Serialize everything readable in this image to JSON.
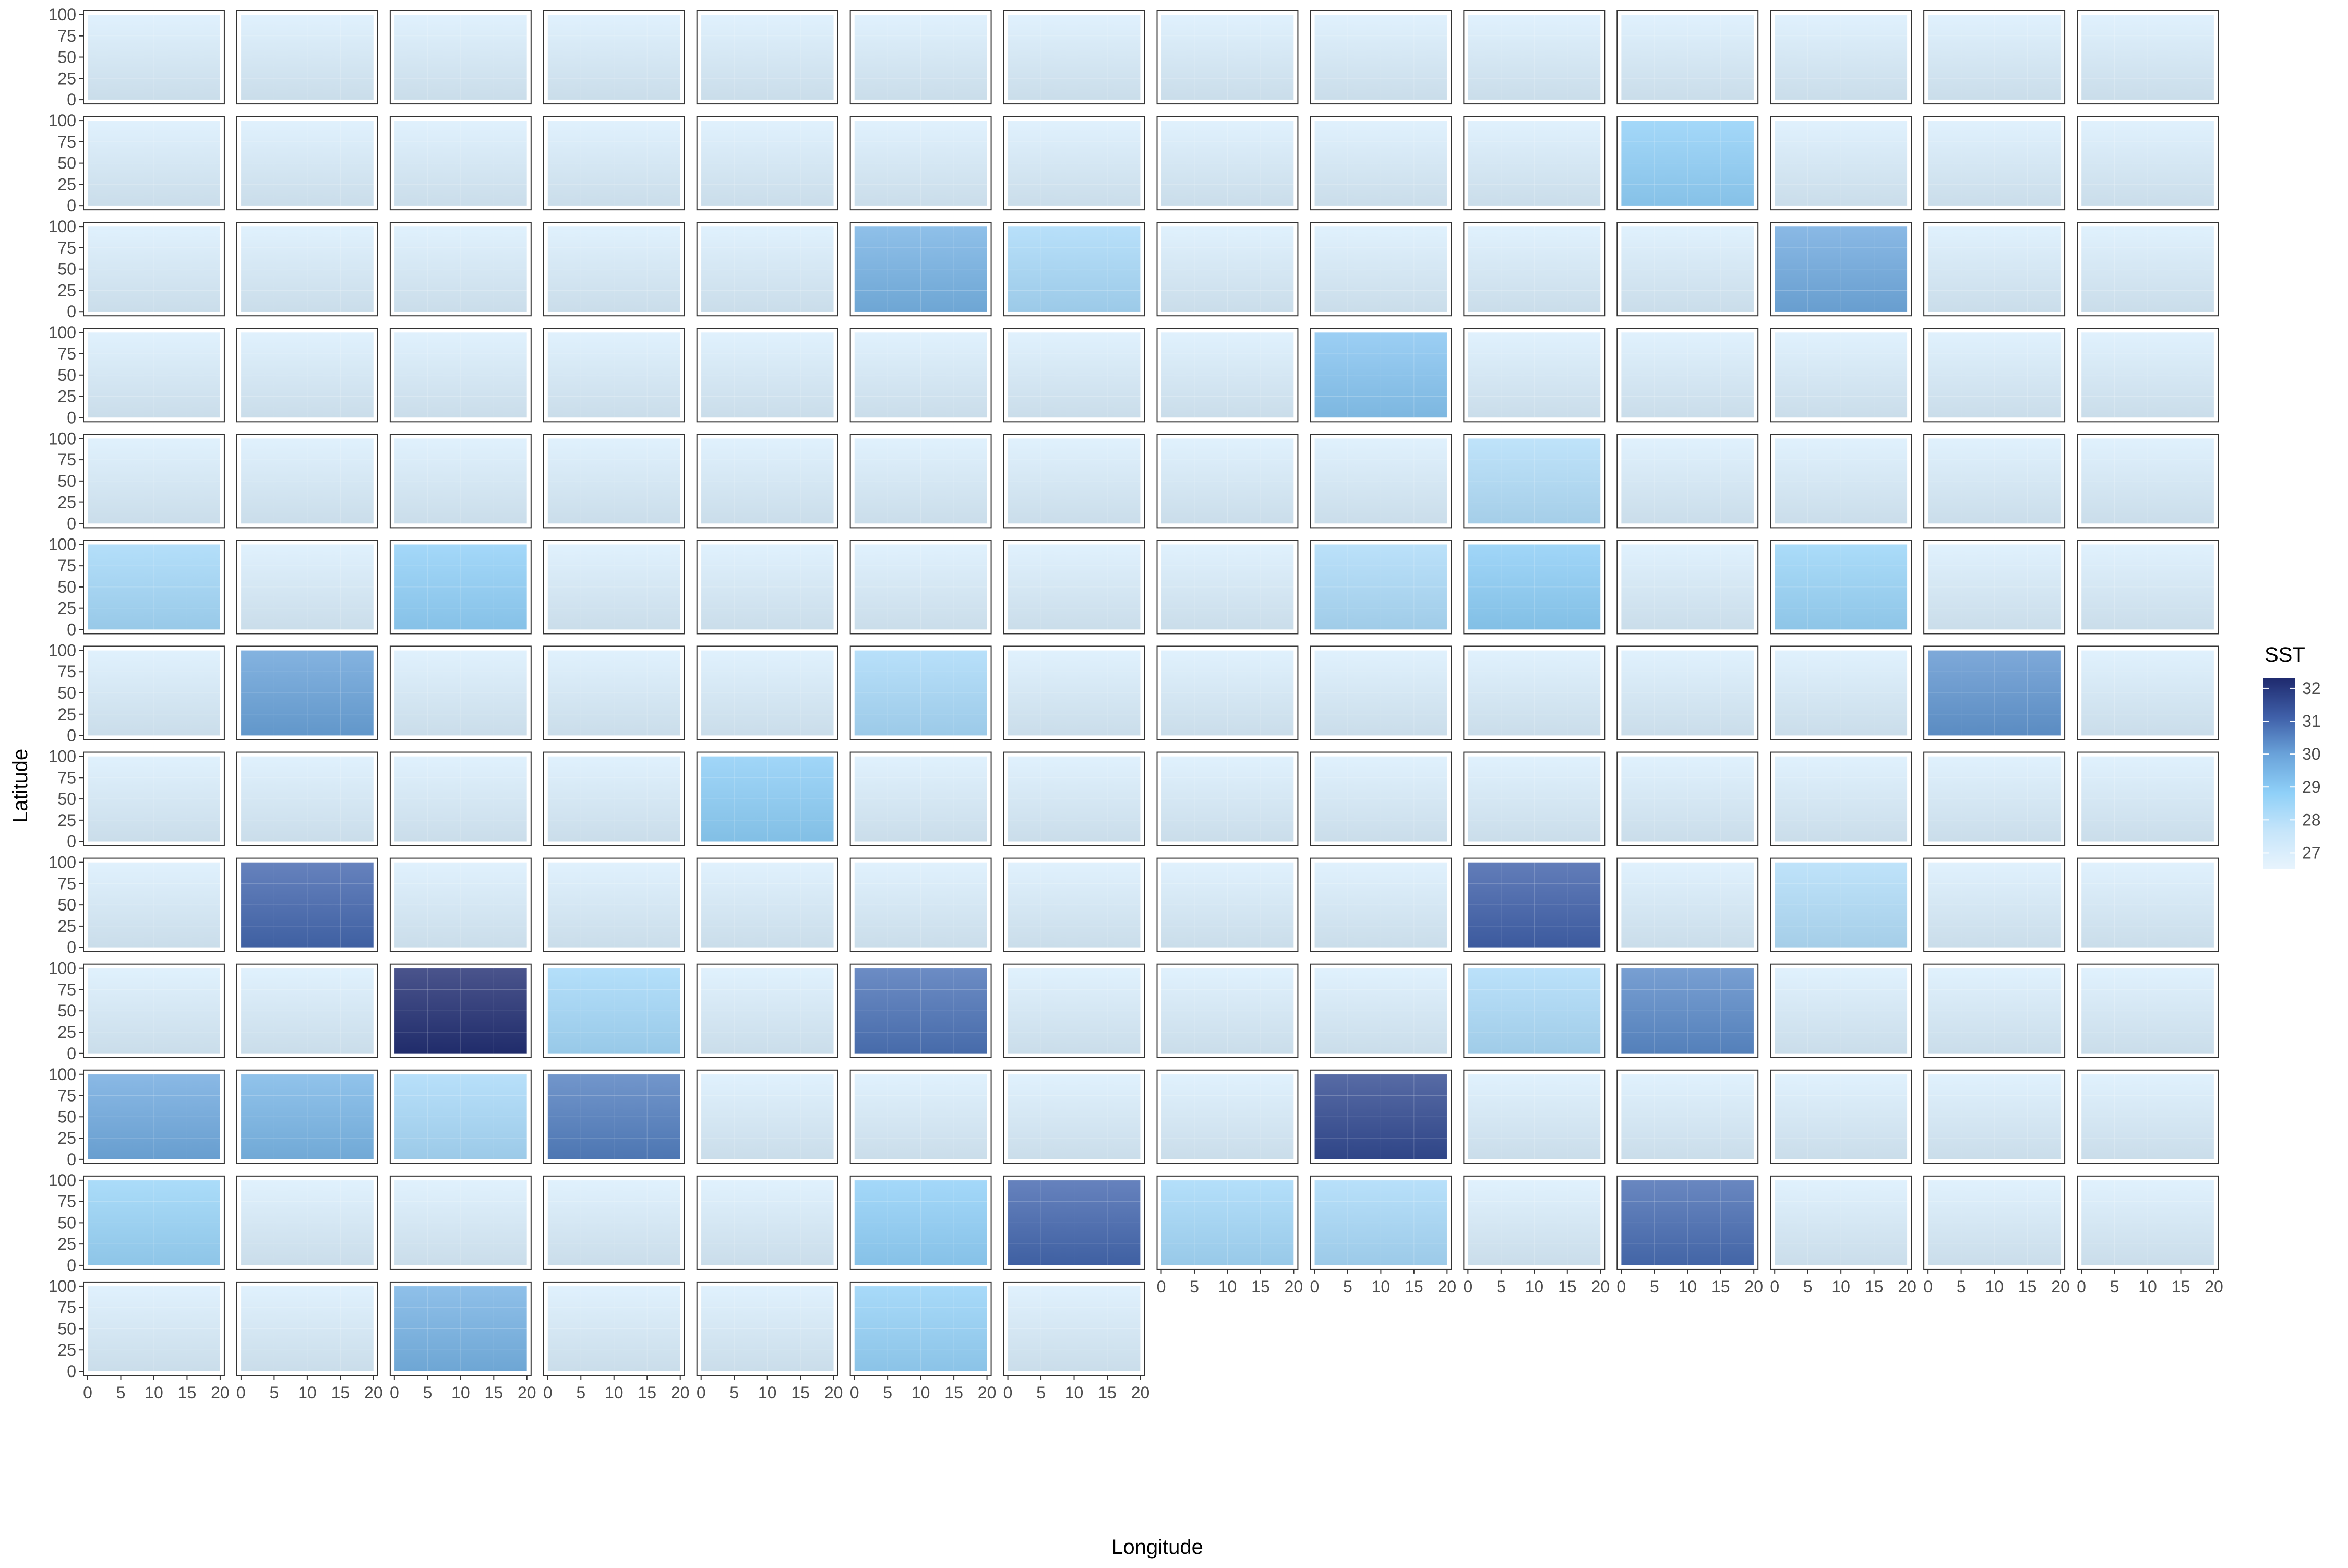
{
  "chart_data": {
    "type": "heatmap",
    "layout": "small-multiples",
    "facet_columns": 14,
    "facet_count": 175,
    "xlabel": "Longitude",
    "ylabel": "Latitude",
    "x_ticks": [
      "0",
      "5",
      "10",
      "15",
      "20"
    ],
    "y_ticks": [
      "0",
      "25",
      "50",
      "75",
      "100"
    ],
    "xlim": [
      0,
      20
    ],
    "ylim": [
      0,
      100
    ],
    "grid": true,
    "legend": {
      "title": "SST",
      "position": "right",
      "ticks": [
        "27",
        "28",
        "29",
        "30",
        "31",
        "32"
      ],
      "range": [
        26.5,
        32.3
      ],
      "colors": [
        "#e8f4fd",
        "#c6e5fa",
        "#8fd0f8",
        "#6aa3da",
        "#3f5fa8",
        "#1f2a6e"
      ]
    },
    "panel_sst": [
      [
        27.0,
        27.0,
        27.0,
        27.0,
        27.0,
        27.0,
        27.0,
        27.0,
        27.0,
        27.0,
        27.0,
        27.0,
        27.0,
        27.0
      ],
      [
        27.0,
        27.0,
        27.0,
        27.0,
        27.0,
        27.0,
        27.0,
        27.0,
        27.0,
        27.0,
        28.8,
        27.0,
        27.0,
        27.0
      ],
      [
        27.0,
        27.0,
        27.0,
        27.0,
        27.0,
        29.6,
        28.3,
        27.0,
        27.0,
        27.0,
        27.0,
        29.8,
        27.0,
        27.0
      ],
      [
        27.0,
        27.0,
        27.0,
        27.0,
        27.0,
        27.0,
        27.0,
        27.0,
        29.1,
        27.0,
        27.0,
        27.0,
        27.0,
        27.0
      ],
      [
        27.0,
        27.0,
        27.0,
        27.0,
        27.0,
        27.0,
        27.0,
        27.0,
        27.0,
        28.1,
        27.0,
        27.0,
        27.0,
        27.0
      ],
      [
        28.4,
        27.0,
        28.8,
        27.0,
        27.0,
        27.0,
        27.0,
        27.0,
        28.2,
        28.9,
        27.0,
        28.6,
        27.0,
        27.0
      ],
      [
        27.0,
        30.0,
        27.0,
        27.0,
        27.0,
        28.3,
        27.0,
        27.0,
        27.0,
        27.0,
        27.0,
        27.0,
        30.2,
        27.0
      ],
      [
        27.0,
        27.0,
        27.0,
        27.0,
        28.9,
        27.0,
        27.0,
        27.0,
        27.0,
        27.0,
        27.0,
        27.0,
        27.0,
        27.0
      ],
      [
        27.0,
        31.0,
        27.0,
        27.0,
        27.0,
        27.0,
        27.0,
        27.0,
        27.0,
        31.1,
        27.0,
        28.1,
        27.0,
        27.0
      ],
      [
        27.0,
        27.0,
        32.2,
        28.4,
        27.0,
        30.8,
        27.0,
        27.0,
        27.0,
        28.2,
        30.4,
        27.0,
        27.0,
        27.0
      ],
      [
        29.8,
        29.5,
        28.3,
        30.6,
        27.0,
        27.0,
        27.0,
        27.0,
        31.6,
        27.0,
        27.0,
        27.0,
        27.0,
        27.0
      ],
      [
        28.6,
        27.0,
        27.0,
        27.0,
        27.0,
        28.8,
        31.0,
        28.4,
        28.3,
        27.0,
        30.9,
        27.0,
        27.0,
        27.0
      ],
      [
        27.0,
        27.0,
        29.6,
        27.0,
        27.0,
        28.7,
        27.0
      ]
    ]
  }
}
